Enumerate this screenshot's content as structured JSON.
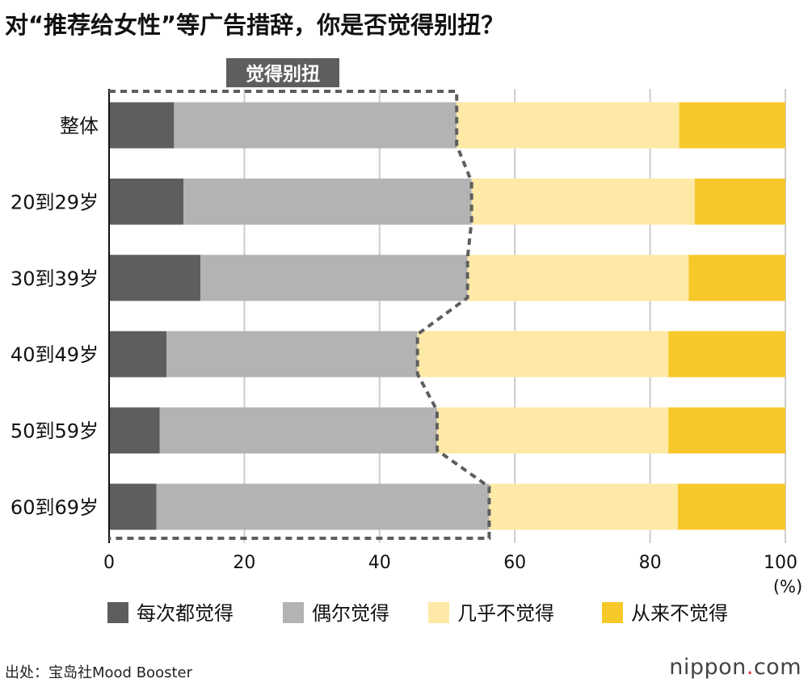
{
  "title": "对“推荐给女性”等广告措辞，你是否觉得别扭？",
  "source": "出处：宝岛社Mood Booster",
  "logo": {
    "name": "nippon",
    "dot": ".",
    "tld": "com"
  },
  "colors": {
    "每次都觉得": "#5e5e5e",
    "偶尔觉得": "#b3b3b3",
    "几乎不觉得": "#fee9a6",
    "从来不觉得": "#f7c829",
    "bracket": "#5e5e5e"
  },
  "chart_data": {
    "type": "bar",
    "orientation": "horizontal",
    "stacked": true,
    "categories": [
      "整体",
      "20到29岁",
      "30到39岁",
      "40到49岁",
      "50到59岁",
      "60到69岁"
    ],
    "series": [
      {
        "name": "每次都觉得",
        "values": [
          9.6,
          11.0,
          13.5,
          8.5,
          7.5,
          7.0
        ]
      },
      {
        "name": "偶尔觉得",
        "values": [
          41.8,
          42.6,
          39.5,
          37.1,
          41.0,
          49.2
        ]
      },
      {
        "name": "几乎不觉得",
        "values": [
          32.9,
          33.0,
          32.7,
          37.1,
          34.2,
          27.9
        ]
      },
      {
        "name": "从来不觉得",
        "values": [
          15.7,
          13.4,
          14.3,
          17.3,
          17.3,
          15.9
        ]
      }
    ],
    "xlim": [
      0,
      100
    ],
    "xticks": [
      0,
      20,
      40,
      60,
      80,
      100
    ],
    "xunit": "(%)",
    "grid": true,
    "legend": "bottom",
    "annotation": "觉得别扭"
  }
}
